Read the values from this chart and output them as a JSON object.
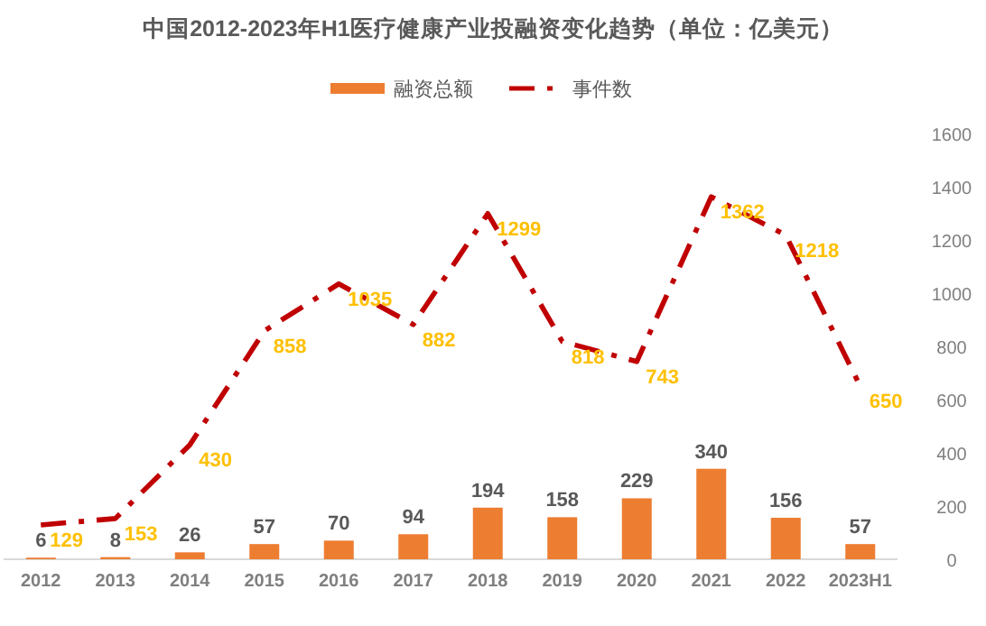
{
  "chart_data": {
    "type": "bar",
    "title": "中国2012-2023年H1医疗健康产业投融资变化趋势（单位：亿美元）",
    "categories": [
      "2012",
      "2013",
      "2014",
      "2015",
      "2016",
      "2017",
      "2018",
      "2019",
      "2020",
      "2021",
      "2022",
      "2023H1"
    ],
    "series": [
      {
        "name": "融资总额",
        "color": "#ed7d31",
        "values": [
          6,
          8,
          26,
          57,
          70,
          94,
          194,
          158,
          229,
          340,
          156,
          57
        ],
        "data_labels": true
      },
      {
        "name": "事件数",
        "type": "line",
        "color": "#c00000",
        "line_style": "dashdot",
        "values": [
          129,
          153,
          430,
          858,
          1035,
          882,
          1299,
          818,
          743,
          1362,
          1218,
          650
        ],
        "data_labels": true
      }
    ],
    "ylim": [
      0,
      1600
    ],
    "yticks": [
      0,
      200,
      400,
      600,
      800,
      1000,
      1200,
      1400,
      1600
    ],
    "grid": false,
    "legend": "top",
    "marker": "none",
    "data_labels": true
  }
}
